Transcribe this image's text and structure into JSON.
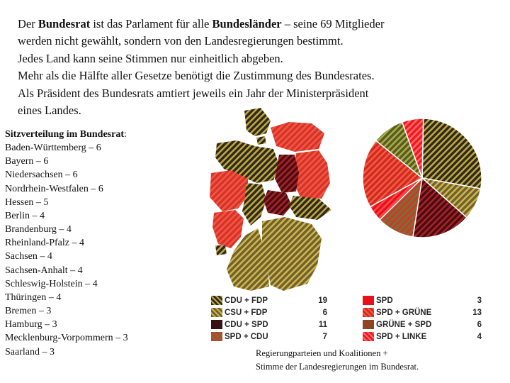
{
  "intro": {
    "line1_a": "Der ",
    "line1_bold1": "Bundesrat",
    "line1_b": " ist das Parlament für alle ",
    "line1_bold2": "Bundesländer",
    "line1_c": " – seine 69 Mitglieder",
    "line2": "werden nicht gewählt, sondern von den Landesregierungen bestimmt.",
    "line3": "Jedes Land kann seine Stimmen nur einheitlich abgeben.",
    "line4": "Mehr als die Hälfte aller Gesetze benötigt die Zustimmung des Bundesrates.",
    "line5": "Als Präsident des Bundesrats amtiert jeweils ein Jahr der Ministerpräsident",
    "line6": "eines Landes."
  },
  "seats": {
    "heading": "Sitzverteilung im Bundesrat",
    "heading_suffix": ":",
    "rows": [
      "Baden-Württemberg – 6",
      "Bayern – 6",
      "Niedersachsen – 6",
      "Nordrhein-Westfalen – 6",
      "Hessen – 5",
      "Berlin – 4",
      "Brandenburg – 4",
      "Rheinland-Pfalz – 4",
      "Sachsen – 4",
      "Sachsen-Anhalt – 4",
      "Schleswig-Holstein – 4",
      "Thüringen – 4",
      "Bremen – 3",
      "Hamburg – 3",
      "Mecklenburg-Vorpommern – 3",
      "Saarland – 3"
    ]
  },
  "colors": {
    "cdu_fdp": "#2b2b24",
    "csu_fdp": "#7a6a32",
    "cdu_spd": "#5a0f14",
    "spd_cdu": "#7c6d33",
    "spd": "#e8101c",
    "spd_gruene": "#d42825",
    "gruene_spd": "#6b6a2b",
    "spd_linke": "#ee1a22",
    "stripe_dark": "#1a1a1a",
    "stripe_red": "#d8322a",
    "stripe_yellow": "#c7a838",
    "stripe_green": "#8c9a2c"
  },
  "legend": {
    "left": [
      {
        "label": "CDU + FDP",
        "value": "19"
      },
      {
        "label": "CSU + FDP",
        "value": "6"
      },
      {
        "label": "CDU + SPD",
        "value": "11"
      },
      {
        "label": "SPD + CDU",
        "value": "7"
      }
    ],
    "right": [
      {
        "label": "SPD",
        "value": "3"
      },
      {
        "label": "SPD + GRÜNE",
        "value": "13"
      },
      {
        "label": "GRÜNE + SPD",
        "value": "6"
      },
      {
        "label": "SPD + LINKE",
        "value": "4"
      }
    ]
  },
  "caption": {
    "line1": "Regierungparteien und Koalitionen +",
    "line2": "Stimme der Landesregierungen im Bundesrat."
  },
  "chart_data": {
    "type": "pie",
    "categories": [
      "CDU + FDP",
      "CSU + FDP",
      "CDU + SPD",
      "SPD + CDU",
      "SPD",
      "SPD + GRÜNE",
      "GRÜNE + SPD",
      "SPD + LINKE"
    ],
    "values": [
      19,
      6,
      11,
      7,
      3,
      13,
      6,
      4
    ]
  }
}
